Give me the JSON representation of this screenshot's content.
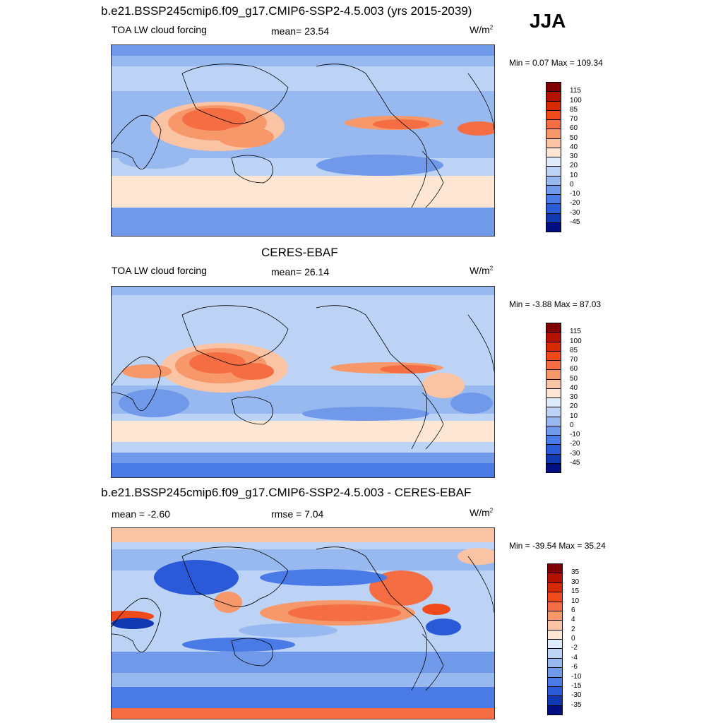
{
  "season": "JJA",
  "panels": [
    {
      "title": "b.e21.BSSP245cmip6.f09_g17.CMIP6-SSP2-4.5.003 (yrs 2015-2039)",
      "left_label": "TOA LW cloud forcing",
      "center_label": "mean=  23.54",
      "units": "W/m",
      "units_sup": "2",
      "min_max": "Min =   0.07 Max = 109.34",
      "colorbar_levels": [
        "115",
        "100",
        "85",
        "70",
        "60",
        "50",
        "40",
        "30",
        "20",
        "10",
        "0",
        "-10",
        "-20",
        "-30",
        "-45"
      ]
    },
    {
      "title": "CERES-EBAF",
      "left_label": "TOA LW cloud forcing",
      "center_label": "mean=  26.14",
      "units": "W/m",
      "units_sup": "2",
      "min_max": "Min =  -3.88 Max =  87.03",
      "colorbar_levels": [
        "115",
        "100",
        "85",
        "70",
        "60",
        "50",
        "40",
        "30",
        "20",
        "10",
        "0",
        "-10",
        "-20",
        "-30",
        "-45"
      ]
    },
    {
      "title": "b.e21.BSSP245cmip6.f09_g17.CMIP6-SSP2-4.5.003 - CERES-EBAF",
      "left_label": "mean =  -2.60",
      "center_label": "rmse =   7.04",
      "units": "W/m",
      "units_sup": "2",
      "min_max": "Min = -39.54 Max =  35.24",
      "colorbar_levels": [
        "35",
        "30",
        "15",
        "10",
        "6",
        "4",
        "2",
        "0",
        "-2",
        "-4",
        "-6",
        "-10",
        "-15",
        "-30",
        "-35"
      ]
    }
  ],
  "colors": {
    "abs_scale": [
      "#7f0000",
      "#b31200",
      "#d62a00",
      "#f04a1a",
      "#f46d43",
      "#f7986b",
      "#fac3a3",
      "#fde6d3",
      "#ddebfa",
      "#bcd3f5",
      "#98b8f0",
      "#7099ea",
      "#4a7ae6",
      "#2a5ad8",
      "#1038b0",
      "#000f80"
    ],
    "diff_scale": [
      "#7f0000",
      "#b31200",
      "#d62a00",
      "#f04a1a",
      "#f46d43",
      "#f7986b",
      "#fac3a3",
      "#fde6d3",
      "#ddebfa",
      "#bcd3f5",
      "#98b8f0",
      "#7099ea",
      "#4a7ae6",
      "#2a5ad8",
      "#1038b0",
      "#000f80"
    ]
  }
}
